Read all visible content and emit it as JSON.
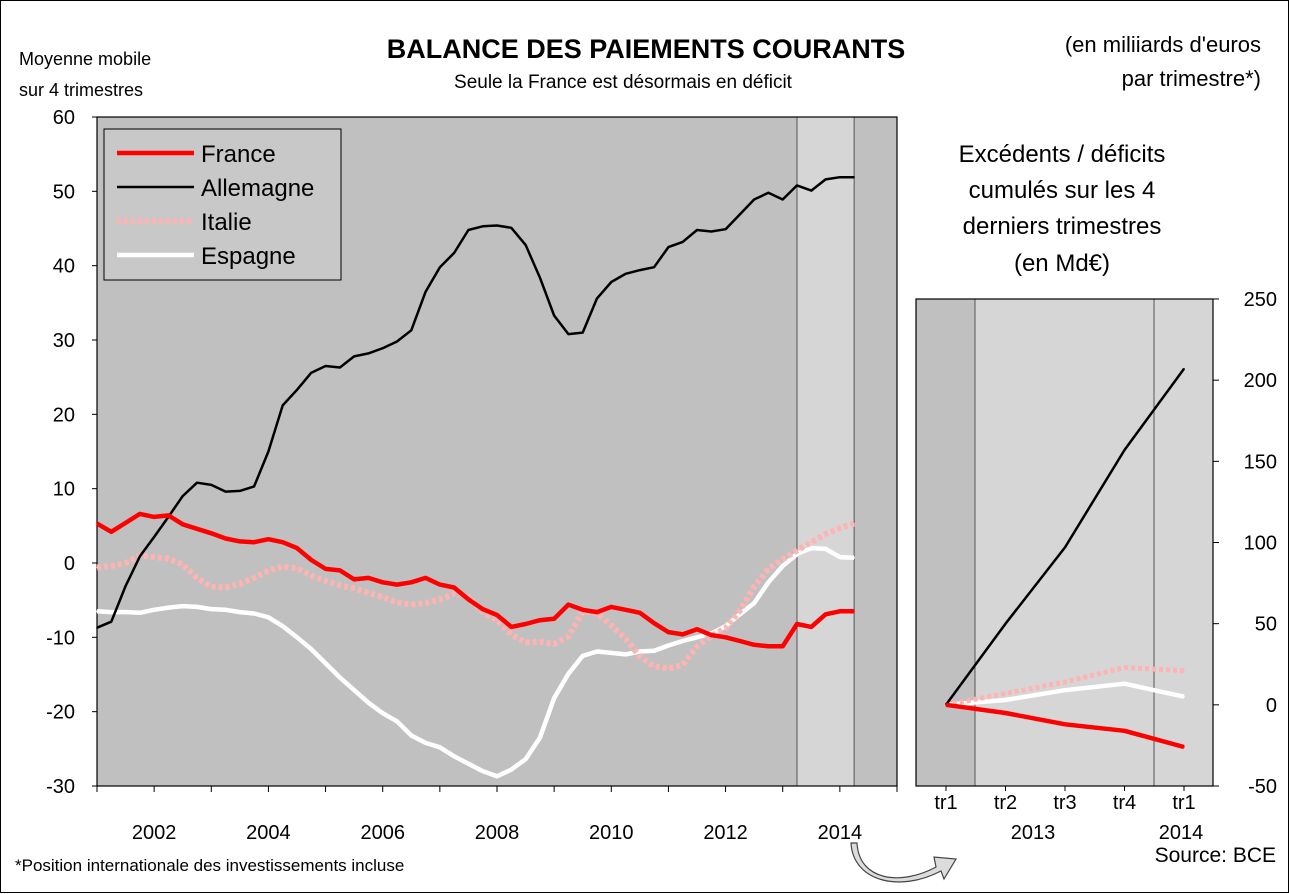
{
  "header": {
    "title": "BALANCE DES PAIEMENTS COURANTS",
    "subtitle": "Seule la France est désormais en déficit",
    "left_note_line1": "Moyenne mobile",
    "left_note_line2": "sur 4 trimestres",
    "unit_line1": "(en miliiards d'euros",
    "unit_line2": "par trimestre*)"
  },
  "footer": {
    "footnote": "*Position internationale des investissements incluse",
    "source": "Source: BCE"
  },
  "colors": {
    "France": "#ff0000",
    "Allemagne": "#000000",
    "Italie": "#ffb3b3",
    "Espagne": "#ffffff",
    "plot_bg": "#c0c0c0",
    "highlight_bg": "#d6d6d6"
  },
  "chart_data": [
    {
      "type": "line",
      "title": "BALANCE DES PAIEMENTS COURANTS",
      "ylabel": "Moyenne mobile sur 4 trimestres",
      "xlim": [
        2001.0,
        2015.0
      ],
      "ylim": [
        -30,
        60
      ],
      "yticks": [
        -30,
        -20,
        -10,
        0,
        10,
        20,
        30,
        40,
        50,
        60
      ],
      "xtick_labels": [
        "2002",
        "2004",
        "2006",
        "2008",
        "2010",
        "2012",
        "2014"
      ],
      "highlight_region": [
        2013.25,
        2014.25
      ],
      "grid": false,
      "legend": "top-left",
      "x": [
        2001.0,
        2001.25,
        2001.5,
        2001.75,
        2002.0,
        2002.25,
        2002.5,
        2002.75,
        2003.0,
        2003.25,
        2003.5,
        2003.75,
        2004.0,
        2004.25,
        2004.5,
        2004.75,
        2005.0,
        2005.25,
        2005.5,
        2005.75,
        2006.0,
        2006.25,
        2006.5,
        2006.75,
        2007.0,
        2007.25,
        2007.5,
        2007.75,
        2008.0,
        2008.25,
        2008.5,
        2008.75,
        2009.0,
        2009.25,
        2009.5,
        2009.75,
        2010.0,
        2010.25,
        2010.5,
        2010.75,
        2011.0,
        2011.25,
        2011.5,
        2011.75,
        2012.0,
        2012.25,
        2012.5,
        2012.75,
        2013.0,
        2013.25,
        2013.5,
        2013.75,
        2014.0,
        2014.25
      ],
      "series": [
        {
          "name": "France",
          "values": [
            5.3,
            4.2,
            5.4,
            6.6,
            6.2,
            6.4,
            5.2,
            4.6,
            4.0,
            3.3,
            2.9,
            2.8,
            3.2,
            2.8,
            2.0,
            0.4,
            -0.8,
            -1.0,
            -2.2,
            -2.0,
            -2.6,
            -2.9,
            -2.6,
            -2.0,
            -2.9,
            -3.3,
            -4.9,
            -6.2,
            -7.0,
            -8.6,
            -8.2,
            -7.7,
            -7.5,
            -5.6,
            -6.3,
            -6.6,
            -5.9,
            -6.3,
            -6.7,
            -8.1,
            -9.3,
            -9.6,
            -8.9,
            -9.7,
            -10.0,
            -10.5,
            -11.0,
            -11.2,
            -11.2,
            -8.2,
            -8.6,
            -6.9,
            -6.5,
            -6.5
          ]
        },
        {
          "name": "Allemagne",
          "values": [
            -8.7,
            -7.9,
            -3.1,
            0.9,
            3.5,
            6.2,
            9.0,
            10.8,
            10.5,
            9.6,
            9.7,
            10.3,
            15.0,
            21.2,
            23.3,
            25.6,
            26.5,
            26.3,
            27.8,
            28.2,
            28.9,
            29.8,
            31.3,
            36.5,
            39.8,
            41.7,
            44.8,
            45.3,
            45.4,
            45.1,
            42.8,
            38.4,
            33.3,
            30.8,
            31.0,
            35.6,
            37.8,
            38.9,
            39.4,
            39.8,
            42.5,
            43.2,
            44.8,
            44.6,
            44.9,
            46.9,
            48.9,
            49.8,
            48.9,
            50.8,
            50.1,
            51.6,
            51.9,
            51.9
          ]
        },
        {
          "name": "Italie",
          "values": [
            -0.6,
            -0.4,
            0.0,
            1.0,
            0.8,
            0.6,
            -0.2,
            -2.0,
            -3.2,
            -3.3,
            -2.8,
            -2.0,
            -1.0,
            -0.5,
            -0.7,
            -1.7,
            -2.4,
            -3.0,
            -3.4,
            -4.0,
            -4.6,
            -5.3,
            -5.6,
            -5.4,
            -4.9,
            -4.1,
            -4.6,
            -6.6,
            -7.7,
            -9.6,
            -10.7,
            -10.6,
            -10.9,
            -9.9,
            -6.5,
            -6.8,
            -8.4,
            -10.2,
            -12.6,
            -13.9,
            -14.2,
            -13.7,
            -11.2,
            -9.8,
            -8.8,
            -6.4,
            -3.2,
            -0.8,
            0.5,
            1.7,
            2.8,
            3.9,
            4.7,
            5.3
          ]
        },
        {
          "name": "Espagne",
          "values": [
            -6.5,
            -6.6,
            -6.6,
            -6.7,
            -6.3,
            -6.0,
            -5.8,
            -5.9,
            -6.2,
            -6.3,
            -6.6,
            -6.8,
            -7.3,
            -8.5,
            -10.0,
            -11.6,
            -13.5,
            -15.4,
            -17.1,
            -18.8,
            -20.2,
            -21.3,
            -23.2,
            -24.2,
            -24.8,
            -26.0,
            -27.0,
            -28.0,
            -28.7,
            -27.8,
            -26.4,
            -23.5,
            -18.2,
            -14.9,
            -12.5,
            -11.9,
            -12.1,
            -12.3,
            -11.9,
            -11.8,
            -11.1,
            -10.5,
            -10.0,
            -9.5,
            -8.5,
            -6.9,
            -5.4,
            -2.6,
            -0.4,
            1.2,
            2.0,
            1.9,
            0.8,
            0.7
          ]
        }
      ]
    },
    {
      "type": "line",
      "title": "Excédents / déficits cumulés sur les 4 derniers trimestres (en Md€)",
      "xtick_labels": [
        "tr1",
        "tr2",
        "tr3",
        "tr4",
        "tr1"
      ],
      "year_labels": [
        "2013",
        "2014"
      ],
      "x": [
        "2013 tr1",
        "2013 tr2",
        "2013 tr3",
        "2013 tr4",
        "2014 tr1"
      ],
      "ylim": [
        -50,
        250
      ],
      "yticks": [
        -50,
        0,
        50,
        100,
        150,
        200,
        250
      ],
      "grid": false,
      "series": [
        {
          "name": "France",
          "values": [
            0,
            -5,
            -12,
            -16,
            -26
          ]
        },
        {
          "name": "Allemagne",
          "values": [
            0,
            50,
            97,
            157,
            207
          ]
        },
        {
          "name": "Italie",
          "values": [
            0,
            7,
            14,
            23,
            21
          ]
        },
        {
          "name": "Espagne",
          "values": [
            0,
            3,
            9,
            13,
            5
          ]
        }
      ]
    }
  ]
}
